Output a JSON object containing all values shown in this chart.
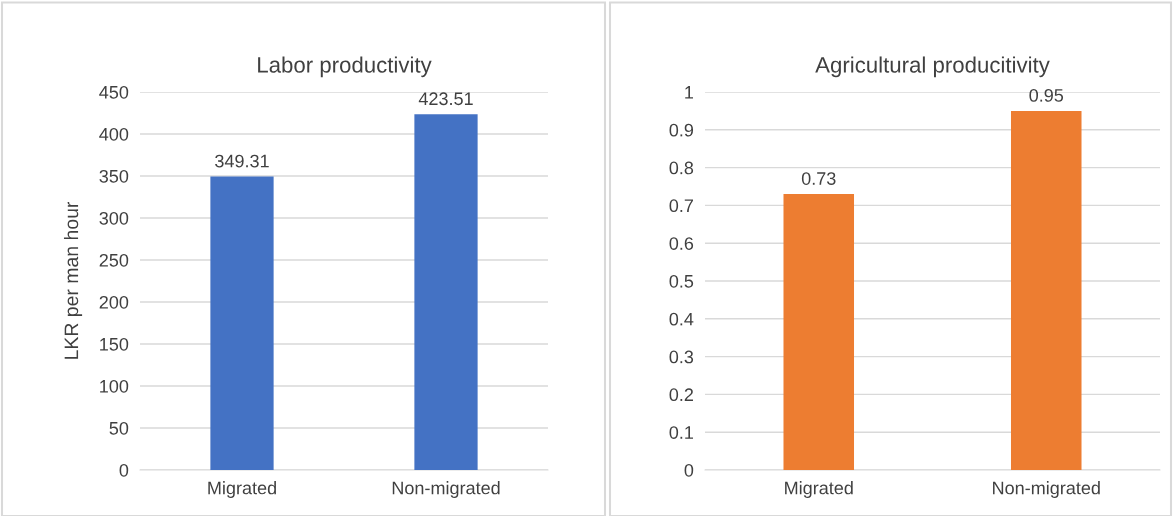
{
  "chart_data": [
    {
      "type": "bar",
      "title": "Labor productivity",
      "ylabel": "LKR per man hour",
      "categories": [
        "Migrated",
        "Non-migrated"
      ],
      "values": [
        349.31,
        423.51
      ],
      "color": "#4472c4",
      "ylim": [
        0,
        450
      ],
      "yticks": [
        0,
        50,
        100,
        150,
        200,
        250,
        300,
        350,
        400,
        450
      ],
      "grid": "y",
      "data_labels": true,
      "legend": false
    },
    {
      "type": "bar",
      "title": "Agricultural producitivity",
      "categories": [
        "Migrated",
        "Non-migrated"
      ],
      "values": [
        0.73,
        0.95
      ],
      "color": "#ed7d31",
      "ylim": [
        0,
        1
      ],
      "yticks": [
        0,
        0.1,
        0.2,
        0.3,
        0.4,
        0.5,
        0.6,
        0.7,
        0.8,
        0.9,
        1
      ],
      "grid": "y",
      "data_labels": true,
      "legend": false
    }
  ]
}
